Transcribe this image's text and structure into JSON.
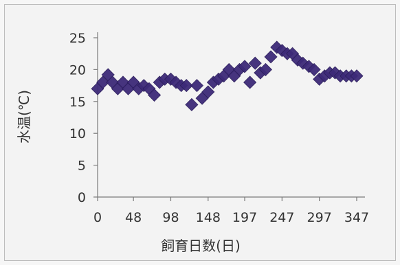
{
  "chart_data": {
    "type": "scatter",
    "title": "",
    "xlabel": "飼育日数(日)",
    "ylabel": "水温(℃)",
    "xlim": [
      0,
      347
    ],
    "ylim": [
      0,
      25
    ],
    "xticks": [
      "0",
      "48",
      "98",
      "148",
      "197",
      "247",
      "297",
      "347"
    ],
    "yticks": [
      "0",
      "5",
      "10",
      "15",
      "20",
      "25"
    ],
    "grid": false,
    "legend": "none",
    "marker": "diamond",
    "marker_color": "#3d2a78",
    "series": [
      {
        "x": [
          0,
          7,
          14,
          20,
          27,
          34,
          41,
          48,
          55,
          62,
          69,
          76,
          83,
          90,
          98,
          105,
          112,
          119,
          126,
          133,
          140,
          148,
          155,
          162,
          169,
          176,
          183,
          190,
          197,
          204,
          211,
          218,
          225,
          232,
          240,
          247,
          254,
          261,
          268,
          275,
          283,
          290,
          297,
          304,
          311,
          318,
          325,
          333,
          340,
          347
        ],
        "y": [
          17,
          18,
          19.2,
          18,
          17,
          18,
          17,
          18,
          17,
          17.5,
          17,
          16,
          18,
          18.5,
          18.5,
          18,
          17.5,
          17.5,
          14.5,
          17.5,
          15.5,
          16.5,
          18,
          18.5,
          19,
          20,
          19,
          20,
          20.5,
          18,
          21,
          19.5,
          20,
          22,
          23.5,
          23,
          22.5,
          22.5,
          21.5,
          21,
          20.5,
          20,
          18.5,
          19,
          19.5,
          19.5,
          19,
          19,
          19,
          19
        ]
      }
    ]
  }
}
